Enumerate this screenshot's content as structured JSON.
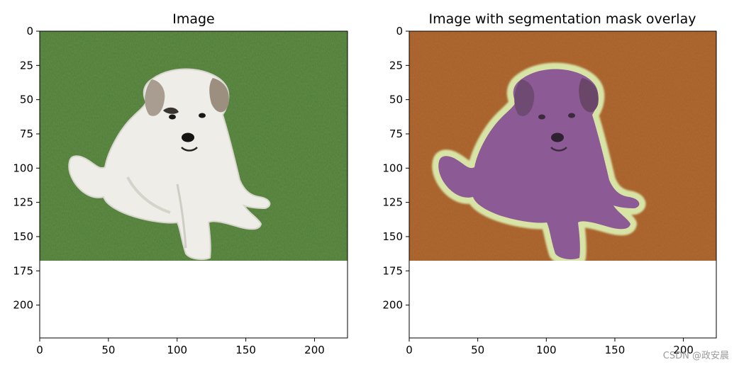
{
  "figure": {
    "watermark": "CSDN @政安晨"
  },
  "chart_data": [
    {
      "type": "image",
      "title": "Image",
      "xlabel": "",
      "ylabel": "",
      "image_width": 224,
      "image_height": 224,
      "content_rows": [
        0,
        168
      ],
      "padding_color": "#000000",
      "xlim": [
        0,
        224
      ],
      "ylim": [
        224,
        0
      ],
      "xticks": [
        0,
        50,
        100,
        150,
        200
      ],
      "xtick_labels": [
        "0",
        "50",
        "100",
        "150",
        "200"
      ],
      "yticks": [
        0,
        25,
        50,
        75,
        100,
        125,
        150,
        175,
        200
      ],
      "ytick_labels": [
        "0",
        "25",
        "50",
        "75",
        "100",
        "125",
        "150",
        "175",
        "200"
      ],
      "background_color": "#4f7a33",
      "subject_color": "#f1f0ec",
      "grid": false
    },
    {
      "type": "image",
      "title": "Image with segmentation mask overlay",
      "xlabel": "",
      "ylabel": "",
      "image_width": 224,
      "image_height": 224,
      "content_rows": [
        0,
        168
      ],
      "padding_color": "#000000",
      "xlim": [
        0,
        224
      ],
      "ylim": [
        224,
        0
      ],
      "xticks": [
        0,
        50,
        100,
        150,
        200
      ],
      "xtick_labels": [
        "0",
        "50",
        "100",
        "150",
        "200"
      ],
      "yticks": [
        0,
        25,
        50,
        75,
        100,
        125,
        150,
        175,
        200
      ],
      "ytick_labels": [
        "0",
        "25",
        "50",
        "75",
        "100",
        "125",
        "150",
        "175",
        "200"
      ],
      "mask_classes": [
        {
          "class": "background",
          "color": "#a85c28"
        },
        {
          "class": "border",
          "color": "#cfe0a0"
        },
        {
          "class": "foreground",
          "color": "#8a5592"
        }
      ],
      "grid": false
    }
  ]
}
